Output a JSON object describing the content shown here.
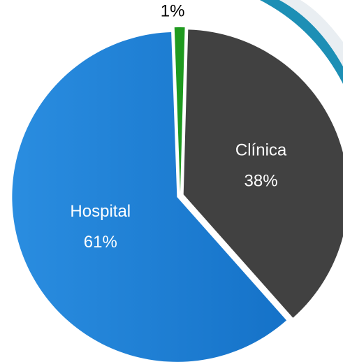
{
  "chart_data": {
    "type": "pie",
    "categories": [
      null,
      "Clínica",
      "Hospital"
    ],
    "values": [
      1,
      38,
      61
    ],
    "value_labels": [
      "1%",
      "38%",
      "61%"
    ],
    "colors": [
      "#1f9a1f",
      "#414141",
      "#1b7fd6"
    ]
  }
}
